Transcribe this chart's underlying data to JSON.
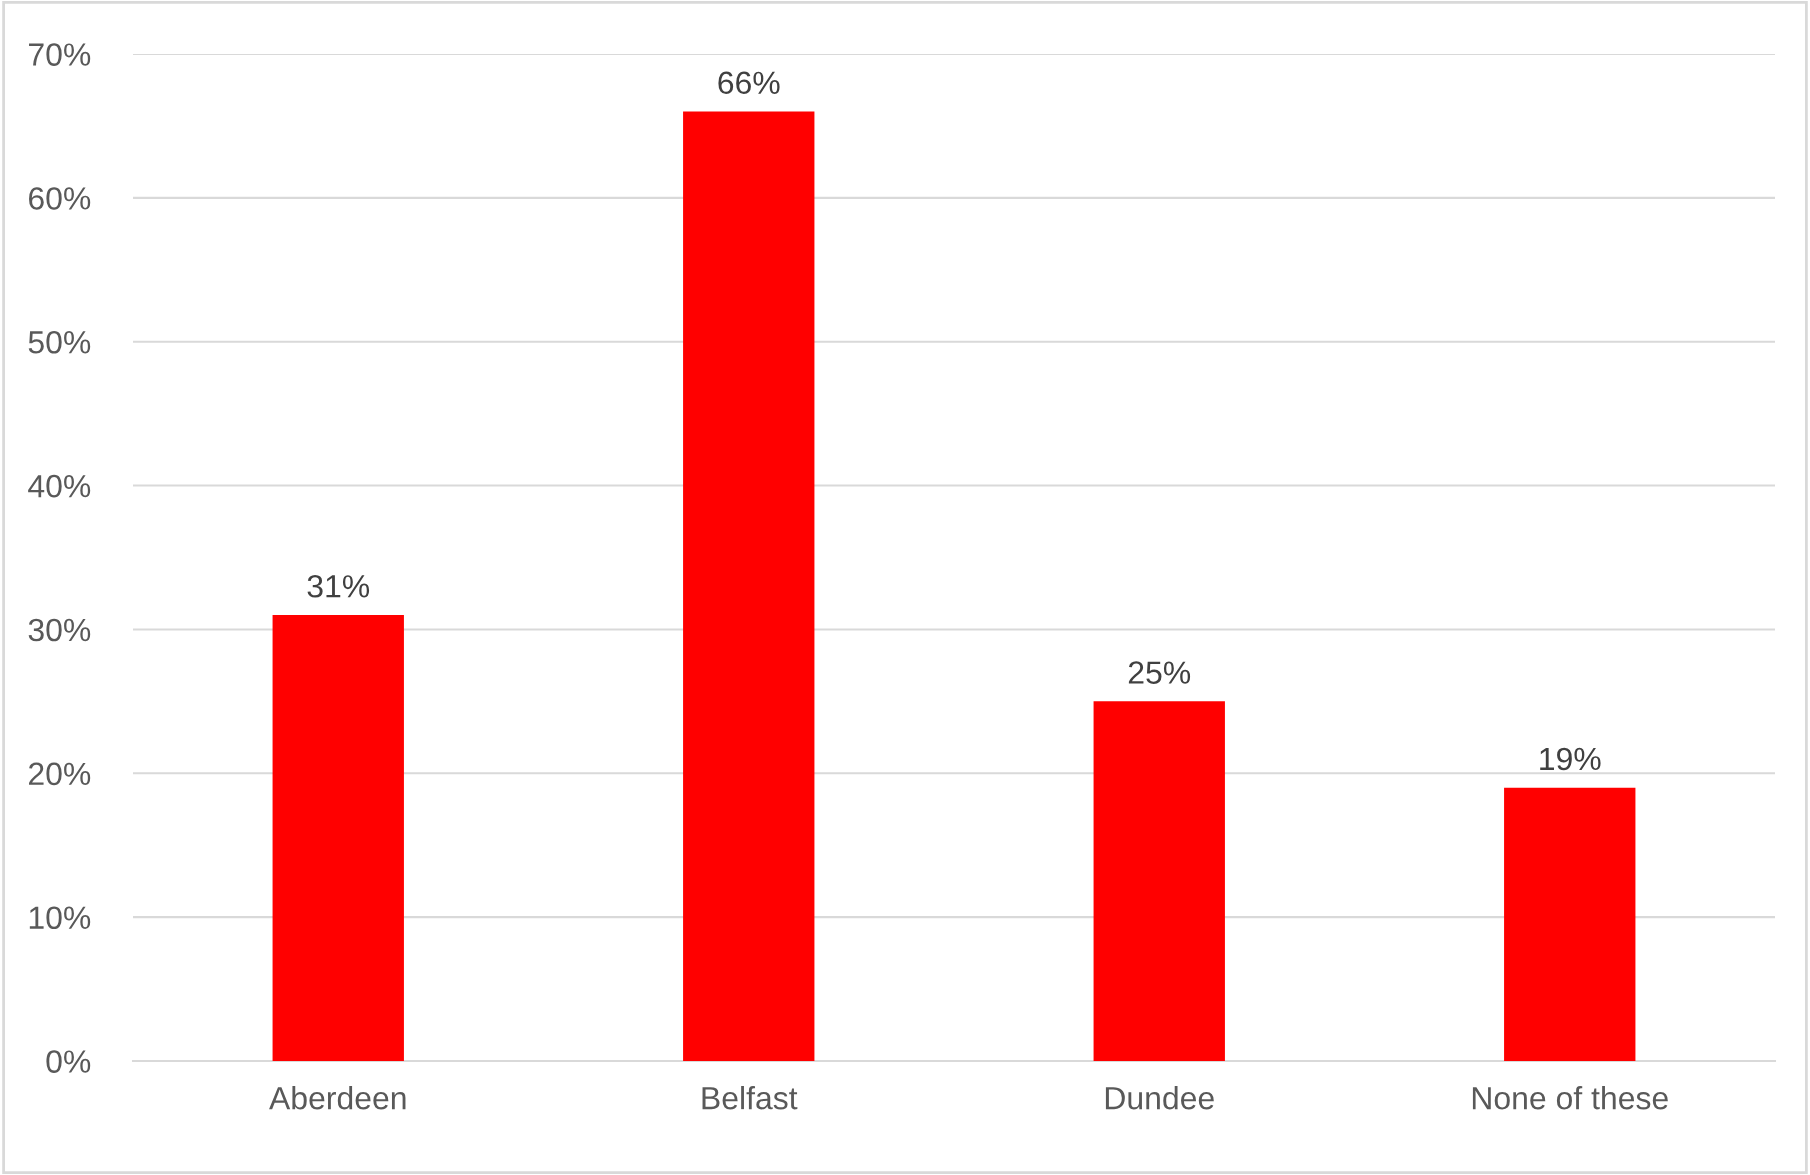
{
  "chart_data": {
    "type": "bar",
    "categories": [
      "Aberdeen",
      "Belfast",
      "Dundee",
      "None of these"
    ],
    "values": [
      31,
      66,
      25,
      19
    ],
    "value_labels": [
      "31%",
      "66%",
      "25%",
      "19%"
    ],
    "color": "#ff0000",
    "ylim": [
      0,
      70
    ],
    "yticks": [
      {
        "value": 0,
        "label": "0%"
      },
      {
        "value": 10,
        "label": "10%"
      },
      {
        "value": 20,
        "label": "20%"
      },
      {
        "value": 30,
        "label": "30%"
      },
      {
        "value": 40,
        "label": "40%"
      },
      {
        "value": 50,
        "label": "50%"
      },
      {
        "value": 60,
        "label": "60%"
      },
      {
        "value": 70,
        "label": "70%"
      }
    ],
    "grid": "y",
    "legend": false
  }
}
